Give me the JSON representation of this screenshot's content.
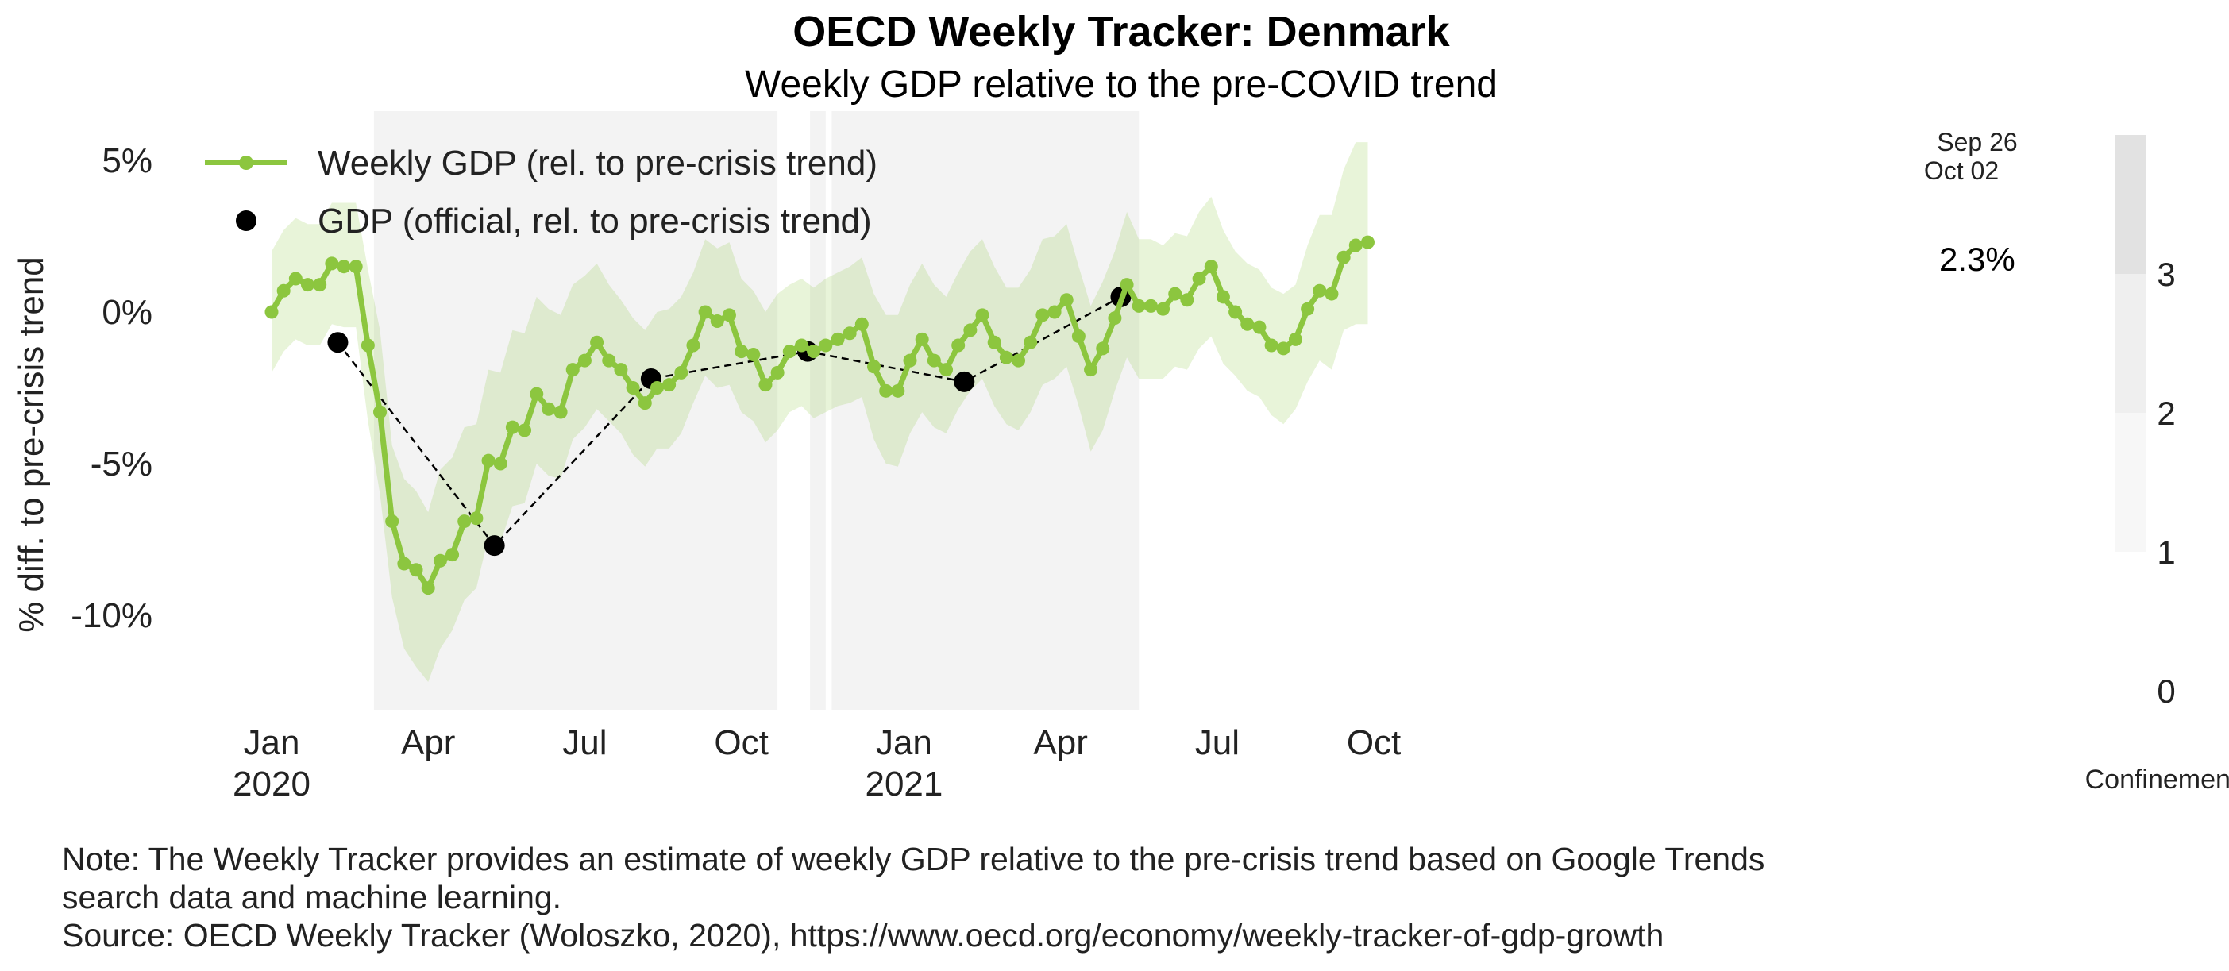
{
  "chart_data": {
    "type": "line",
    "title": "OECD Weekly Tracker: Denmark",
    "subtitle": "Weekly GDP relative to the pre-COVID trend",
    "ylabel": "% diff. to pre-crisis trend",
    "ylim": [
      -13,
      5.8
    ],
    "yticks": [
      {
        "value": 5,
        "label": "5%"
      },
      {
        "value": 0,
        "label": "0%"
      },
      {
        "value": -5,
        "label": "-5%"
      },
      {
        "value": -10,
        "label": "-10%"
      }
    ],
    "xticks": [
      {
        "week": 0,
        "label": "Jan",
        "year": "2020"
      },
      {
        "week": 13,
        "label": "Apr",
        "year": ""
      },
      {
        "week": 26,
        "label": "Jul",
        "year": ""
      },
      {
        "week": 39,
        "label": "Oct",
        "year": ""
      },
      {
        "week": 52.5,
        "label": "Jan",
        "year": "2021"
      },
      {
        "week": 65.5,
        "label": "Apr",
        "year": ""
      },
      {
        "week": 78.5,
        "label": "Jul",
        "year": ""
      },
      {
        "week": 91.5,
        "label": "Oct",
        "year": ""
      }
    ],
    "legend": [
      {
        "name": "Weekly GDP (rel. to pre-crisis trend)",
        "marker": "line-dot",
        "color": "#8cc63f"
      },
      {
        "name": "GDP (official, rel. to pre-crisis trend)",
        "marker": "dot",
        "color": "#000000"
      }
    ],
    "series": [
      {
        "name": "Weekly GDP (rel. to pre-crisis trend)",
        "color": "#8cc63f",
        "start_week": 0,
        "values": [
          0.0,
          0.7,
          1.1,
          0.9,
          0.9,
          1.6,
          1.5,
          1.5,
          -1.1,
          -3.3,
          -6.9,
          -8.3,
          -8.5,
          -9.1,
          -8.2,
          -8.0,
          -6.9,
          -6.8,
          -4.9,
          -5.0,
          -3.8,
          -3.9,
          -2.7,
          -3.2,
          -3.3,
          -1.9,
          -1.6,
          -1.0,
          -1.6,
          -1.9,
          -2.5,
          -3.0,
          -2.5,
          -2.4,
          -2.0,
          -1.1,
          0.0,
          -0.3,
          -0.1,
          -1.3,
          -1.4,
          -2.4,
          -2.0,
          -1.3,
          -1.1,
          -1.3,
          -1.1,
          -0.9,
          -0.7,
          -0.4,
          -1.8,
          -2.6,
          -2.6,
          -1.6,
          -0.9,
          -1.6,
          -1.9,
          -1.1,
          -0.6,
          -0.1,
          -1.0,
          -1.5,
          -1.6,
          -1.0,
          -0.1,
          0.0,
          0.4,
          -0.8,
          -1.9,
          -1.2,
          -0.2,
          0.9,
          0.2,
          0.2,
          0.1,
          0.6,
          0.4,
          1.1,
          1.5,
          0.5,
          0.0,
          -0.4,
          -0.5,
          -1.1,
          -1.2,
          -0.9,
          0.1,
          0.7,
          0.6,
          1.8,
          2.2,
          2.3
        ],
        "band_upper": [
          2.0,
          2.7,
          3.1,
          2.9,
          2.9,
          3.6,
          3.6,
          3.6,
          1.4,
          -0.6,
          -4.4,
          -5.5,
          -5.9,
          -6.6,
          -5.2,
          -4.8,
          -3.8,
          -3.7,
          -1.9,
          -2.0,
          -0.6,
          -0.7,
          0.5,
          0.1,
          -0.1,
          0.9,
          1.2,
          1.6,
          0.9,
          0.4,
          -0.2,
          -0.6,
          0.0,
          0.1,
          0.5,
          1.3,
          2.4,
          2.1,
          2.3,
          1.1,
          0.7,
          0.0,
          0.6,
          0.9,
          1.1,
          0.8,
          1.1,
          1.3,
          1.5,
          1.8,
          0.6,
          -0.1,
          -0.1,
          0.9,
          1.6,
          0.9,
          0.5,
          1.3,
          2.0,
          2.4,
          1.5,
          0.8,
          0.8,
          1.4,
          2.4,
          2.5,
          2.9,
          1.5,
          0.2,
          1.0,
          2.0,
          3.3,
          2.4,
          2.4,
          2.2,
          2.6,
          2.5,
          3.3,
          3.8,
          2.7,
          2.0,
          1.6,
          1.4,
          0.8,
          0.6,
          0.9,
          2.2,
          3.2,
          3.2,
          4.7,
          5.6,
          5.6
        ],
        "band_lower": [
          -2.0,
          -1.3,
          -0.9,
          -1.1,
          -1.1,
          -0.4,
          -0.5,
          -0.5,
          -3.6,
          -6.0,
          -9.4,
          -11.1,
          -11.7,
          -12.2,
          -11.1,
          -10.5,
          -9.5,
          -9.1,
          -7.4,
          -7.6,
          -6.4,
          -6.3,
          -5.0,
          -5.4,
          -5.5,
          -4.2,
          -3.8,
          -3.2,
          -3.6,
          -4.0,
          -4.7,
          -5.1,
          -4.5,
          -4.5,
          -4.0,
          -3.0,
          -2.1,
          -2.5,
          -2.4,
          -3.3,
          -3.6,
          -4.3,
          -3.9,
          -3.3,
          -3.1,
          -3.5,
          -3.3,
          -3.1,
          -3.0,
          -2.8,
          -4.2,
          -5.0,
          -5.1,
          -4.0,
          -3.3,
          -3.8,
          -4.0,
          -3.2,
          -2.6,
          -2.2,
          -3.1,
          -3.7,
          -3.9,
          -3.3,
          -2.4,
          -2.2,
          -1.8,
          -3.1,
          -4.6,
          -3.9,
          -2.6,
          -1.5,
          -2.2,
          -2.2,
          -2.2,
          -1.8,
          -1.9,
          -1.2,
          -0.8,
          -1.7,
          -2.1,
          -2.6,
          -2.8,
          -3.4,
          -3.7,
          -3.2,
          -2.3,
          -1.6,
          -1.9,
          -0.6,
          -0.4,
          -0.4
        ]
      },
      {
        "name": "GDP (official, rel. to pre-crisis trend)",
        "color": "#000000",
        "style": "dashed",
        "points": [
          {
            "week": 5.5,
            "value": -1.0
          },
          {
            "week": 18.5,
            "value": -7.7
          },
          {
            "week": 31.5,
            "value": -2.2
          },
          {
            "week": 44.5,
            "value": -1.3
          },
          {
            "week": 57.5,
            "value": -2.3
          },
          {
            "week": 70.5,
            "value": 0.5
          }
        ]
      }
    ],
    "confinement": {
      "label": "Confinement",
      "colorbar_ticks": [
        "0",
        "1",
        "2",
        "3"
      ],
      "periods": [
        {
          "start_week": 8.5,
          "end_week": 42,
          "level": 1
        },
        {
          "start_week": 44.7,
          "end_week": 46,
          "level": 1
        },
        {
          "start_week": 46.5,
          "end_week": 72,
          "level": 1
        }
      ]
    },
    "end_label": "2.3%",
    "end_date_labels": [
      "Sep 26",
      "Oct 02"
    ]
  },
  "footer": {
    "note_line1": "Note: The Weekly Tracker provides an estimate of weekly GDP relative to the pre-crisis trend based on Google Trends",
    "note_line2": "search data and machine learning.",
    "source": "Source: OECD Weekly Tracker (Woloszko, 2020), https://www.oecd.org/economy/weekly-tracker-of-gdp-growth"
  }
}
